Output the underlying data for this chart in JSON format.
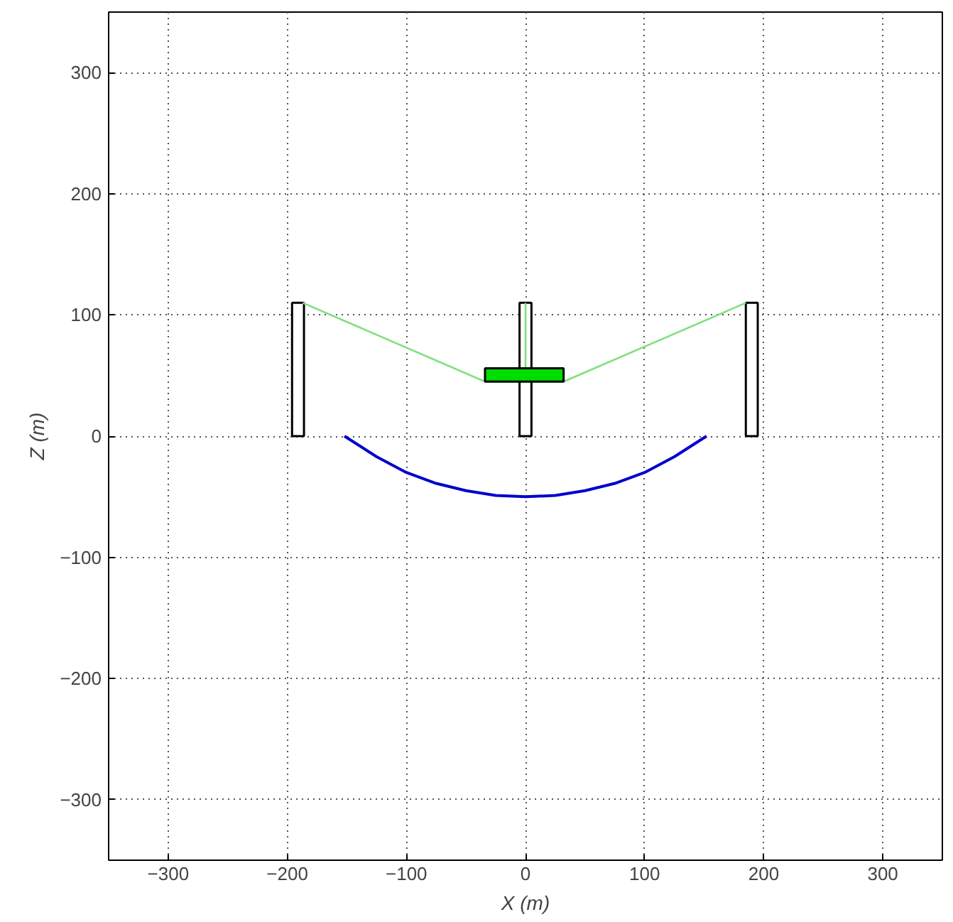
{
  "chart_data": {
    "type": "line",
    "xlabel": "X (m)",
    "ylabel": "Z (m)",
    "xlim": [
      -350,
      350
    ],
    "ylim": [
      -350,
      350
    ],
    "xticks": [
      -300,
      -200,
      -100,
      0,
      100,
      200,
      300
    ],
    "yticks": [
      -300,
      -200,
      -100,
      0,
      100,
      200,
      300
    ],
    "grid": true,
    "line_style": "solid",
    "marker": "none",
    "series": [
      {
        "type": "bar",
        "color": "#ffffff",
        "x": [
          -191,
          0,
          190
        ],
        "base": [
          0,
          0,
          0
        ],
        "values": [
          110,
          110,
          110
        ]
      },
      {
        "color": "#7fe07f",
        "x": [
          -187,
          -34
        ],
        "values": [
          110,
          45
        ]
      },
      {
        "color": "#7fe07f",
        "x": [
          32,
          185
        ],
        "values": [
          45,
          110
        ]
      },
      {
        "color": "#7fe07f",
        "x": [
          0,
          0
        ],
        "values": [
          56,
          110
        ]
      },
      {
        "type": "bar",
        "color": "#00dd00",
        "x": [
          -1
        ],
        "base": [
          45
        ],
        "values": [
          11
        ]
      },
      {
        "color": "#0000cc",
        "x": [
          -152,
          -125,
          -100,
          -75,
          -50,
          -25,
          0,
          25,
          50,
          75,
          100,
          125,
          152
        ],
        "values": [
          0,
          -17,
          -30,
          -39,
          -45,
          -49,
          -50,
          -49,
          -45,
          -39,
          -30,
          -17,
          0
        ]
      }
    ]
  }
}
